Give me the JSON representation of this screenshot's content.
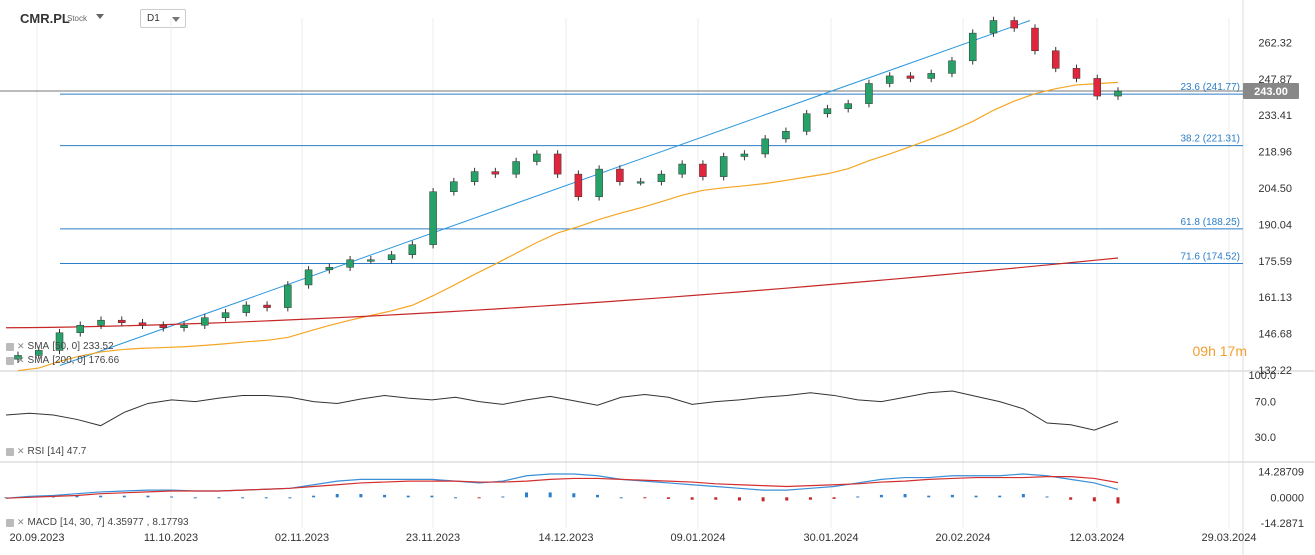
{
  "header": {
    "symbol": "CMR.PL",
    "type": "Stock",
    "timeframe": "D1"
  },
  "timer": "09h 17m",
  "price_label": "243.00",
  "legends": {
    "sma50": {
      "label": "SMA",
      "params": "[50, 0]",
      "value": "233.52"
    },
    "sma200": {
      "label": "SMA",
      "params": "[200, 0]",
      "value": "176.66"
    },
    "rsi": {
      "label": "RSI",
      "params": "[14]",
      "value": "47.7"
    },
    "macd": {
      "label": "MACD",
      "params": "[14, 30, 7]",
      "value1": "4.35977",
      "value2": "8.17793"
    }
  },
  "colors": {
    "up": "#26a269",
    "down": "#e0263c",
    "sma50": "#f5a623",
    "sma200": "#c62828",
    "fib": "#2b7ec9",
    "trend": "#2a96e0",
    "macd": "#3a8fd6",
    "signal": "#d32f2f"
  },
  "chart_data": [
    {
      "type": "candlestick",
      "title": "CMR.PL",
      "x_ticks": [
        "20.09.2023",
        "11.10.2023",
        "02.11.2023",
        "23.11.2023",
        "14.12.2023",
        "09.01.2024",
        "30.01.2024",
        "20.02.2024",
        "12.03.2024",
        "29.03.2024"
      ],
      "y_ticks": [
        132.22,
        146.68,
        161.13,
        175.59,
        190.04,
        204.5,
        218.96,
        233.41,
        247.87,
        262.32
      ],
      "ylim": [
        132.22,
        272
      ],
      "current_price": 243.0,
      "fib_levels": [
        {
          "label": "23.6 (241.77)",
          "value": 241.77
        },
        {
          "label": "38.2 (221.31)",
          "value": 221.31
        },
        {
          "label": "61.8 (188.25)",
          "value": 188.25
        },
        {
          "label": "71.6 (174.52)",
          "value": 174.52
        }
      ],
      "series": [
        {
          "name": "SMA [50, 0]",
          "last": 233.52
        },
        {
          "name": "SMA [200, 0]",
          "last": 176.66
        }
      ],
      "close_path": [
        138,
        140,
        147,
        150,
        152,
        151,
        150,
        149,
        150,
        153,
        155,
        158,
        157,
        166,
        172,
        173,
        176,
        176,
        178,
        182,
        203,
        207,
        211,
        210,
        215,
        218,
        210,
        201,
        212,
        207,
        207,
        210,
        214,
        209,
        217,
        218,
        224,
        227,
        234,
        236,
        238,
        246,
        249,
        248,
        250,
        255,
        266,
        271,
        268,
        259,
        252,
        248,
        241,
        243
      ]
    },
    {
      "type": "line",
      "title": "RSI [14]",
      "y_ticks": [
        30.0,
        70.0,
        100.0
      ],
      "ylim": [
        0,
        100
      ],
      "values": [
        55,
        57,
        55,
        50,
        43,
        58,
        68,
        72,
        70,
        74,
        77,
        77,
        75,
        70,
        68,
        73,
        77,
        74,
        72,
        75,
        70,
        67,
        72,
        76,
        71,
        66,
        75,
        78,
        75,
        67,
        70,
        72,
        75,
        77,
        80,
        77,
        72,
        70,
        75,
        80,
        82,
        76,
        70,
        62,
        46,
        44,
        38,
        47.7
      ]
    },
    {
      "type": "line",
      "title": "MACD [14, 30, 7]",
      "y_ticks": [
        -14.2871,
        0.0,
        14.28709
      ],
      "ylim": [
        -16,
        18
      ],
      "series": [
        {
          "name": "MACD",
          "values": [
            -0.5,
            0.5,
            1,
            2,
            3,
            3.5,
            4,
            4,
            3.5,
            3.5,
            4,
            4.5,
            5,
            7,
            9,
            10,
            10,
            10,
            10,
            9,
            8,
            9,
            12,
            13,
            13,
            12,
            10,
            9,
            8,
            7,
            6,
            5,
            4,
            4,
            5,
            6,
            8,
            10,
            11,
            11,
            12,
            12,
            12,
            13,
            12,
            10,
            8,
            4.36
          ]
        },
        {
          "name": "Signal",
          "values": [
            -0.5,
            0,
            0.5,
            1,
            2,
            2.5,
            3,
            3.5,
            3.5,
            3.5,
            4,
            4.5,
            5,
            6,
            7,
            8,
            8.5,
            9,
            9,
            9,
            8.5,
            8.5,
            9,
            10,
            10.5,
            10.5,
            10,
            9.5,
            9,
            8.5,
            7.5,
            7,
            6.5,
            6,
            6.5,
            7,
            7.5,
            8.5,
            9,
            10,
            10.5,
            11,
            11,
            11,
            11.5,
            11.5,
            10.5,
            8.18
          ]
        }
      ]
    }
  ]
}
